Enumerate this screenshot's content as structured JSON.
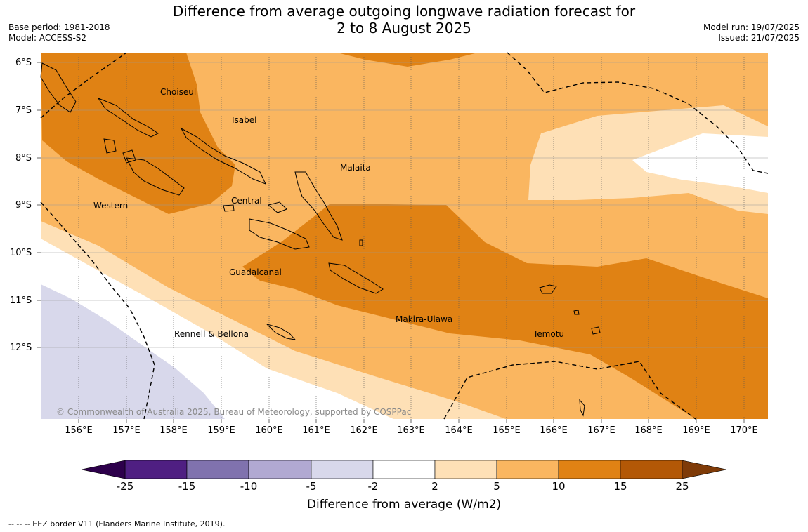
{
  "title_line1": "Difference from average outgoing longwave radiation forecast for",
  "title_line2": "2 to 8 August 2025",
  "base_period": "Base period: 1981-2018",
  "model": "Model: ACCESS-S2",
  "model_run": "Model run: 19/07/2025",
  "issued": "Issued: 21/07/2025",
  "lat_labels": [
    "6°S",
    "7°S",
    "8°S",
    "9°S",
    "10°S",
    "11°S",
    "12°S"
  ],
  "lon_labels": [
    "156°E",
    "157°E",
    "158°E",
    "159°E",
    "160°E",
    "161°E",
    "162°E",
    "163°E",
    "164°E",
    "165°E",
    "166°E",
    "167°E",
    "168°E",
    "169°E",
    "170°E"
  ],
  "regions": {
    "choiseul": "Choiseul",
    "isabel": "Isabel",
    "malaita": "Malaita",
    "western": "Western",
    "central": "Central",
    "guadalcanal": "Guadalcanal",
    "makira": "Makira-Ulawa",
    "temotu": "Temotu",
    "rennell": "Rennell & Bellona"
  },
  "copyright": "© Commonwealth of Australia 2025, Bureau of Meteorology, supported by COSPPac",
  "colorbar": {
    "ticks": [
      "-25",
      "-15",
      "-10",
      "-5",
      "-2",
      "2",
      "5",
      "10",
      "15",
      "25"
    ],
    "colors": [
      "#4f1f82",
      "#8072ae",
      "#b1a9d2",
      "#d8d8eb",
      "#ffffff",
      "#fee0b6",
      "#fab660",
      "#e08214",
      "#b35806"
    ],
    "extend_low": "#2d004b",
    "extend_high": "#7f3b08",
    "title": "Difference from average (W/m2)"
  },
  "legend_note": "--  --  -- EEZ border V11 (Flanders Marine Institute, 2019)."
}
